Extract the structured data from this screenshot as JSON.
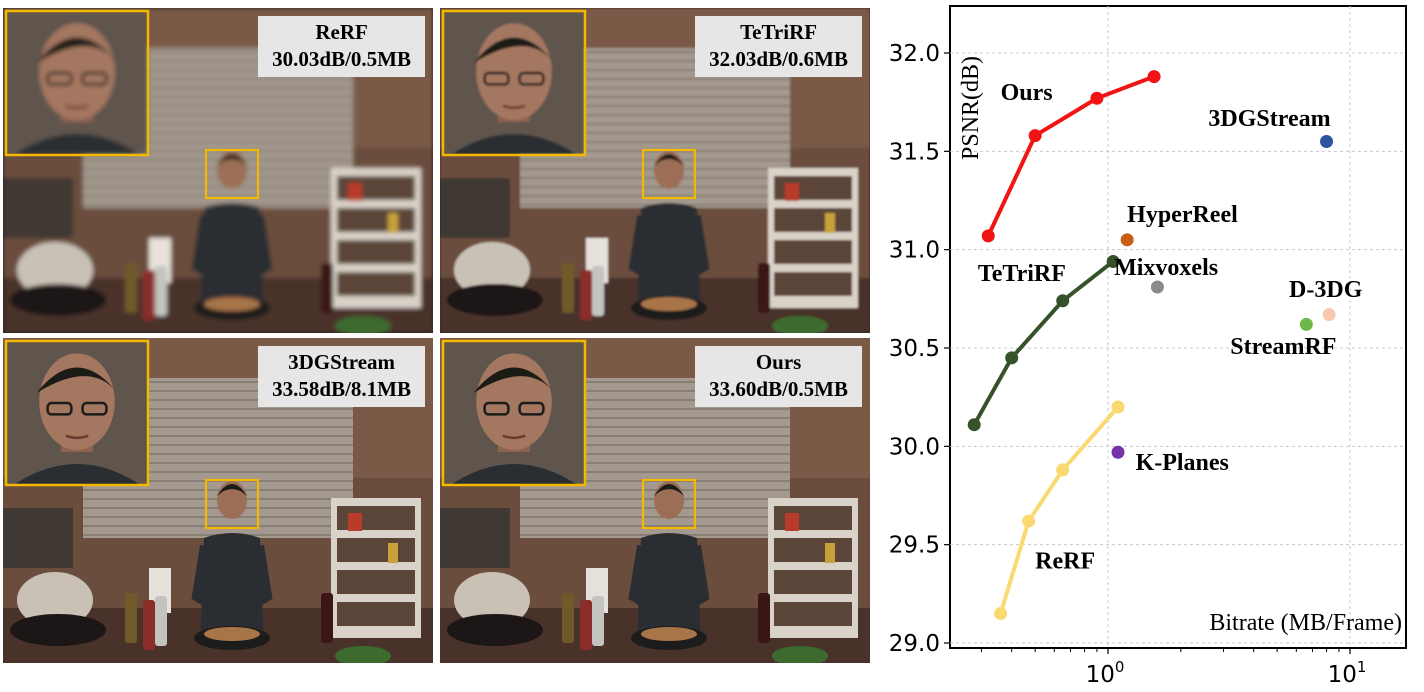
{
  "panels": [
    {
      "method": "ReRF",
      "metric": "30.03dB/0.5MB",
      "blur": 2.2
    },
    {
      "method": "TeTriRF",
      "metric": "32.03dB/0.6MB",
      "blur": 1.0
    },
    {
      "method": "3DGStream",
      "metric": "33.58dB/8.1MB",
      "blur": 0.2
    },
    {
      "method": "Ours",
      "metric": "33.60dB/0.5MB",
      "blur": 0.1
    }
  ],
  "colors": {
    "zoom_frame": "#f5b800"
  },
  "chart_data": {
    "type": "scatter",
    "xscale": "log",
    "xlim": [
      0.2,
      15
    ],
    "ylim": [
      29,
      32.1
    ],
    "xlabel": "Bitrate (MB/Frame)",
    "ylabel": "PSNR(dB)",
    "yticks": [
      29.0,
      29.5,
      30.0,
      30.5,
      31.0,
      31.5,
      32.0
    ],
    "xticks": [
      {
        "value": 1,
        "base": "10",
        "exp": "0"
      },
      {
        "value": 10,
        "base": "10",
        "exp": "1"
      }
    ],
    "grid": true,
    "series": [
      {
        "name": "Ours",
        "color": "#f01414",
        "line": true,
        "x": [
          0.32,
          0.5,
          0.9,
          1.55
        ],
        "y": [
          31.07,
          31.58,
          31.77,
          31.88
        ],
        "label_pos": [
          0.36,
          31.76
        ]
      },
      {
        "name": "TeTriRF",
        "color": "#36522a",
        "line": true,
        "x": [
          0.28,
          0.4,
          0.65,
          1.05
        ],
        "y": [
          30.11,
          30.45,
          30.74,
          30.94
        ],
        "label_pos": [
          0.29,
          30.84
        ]
      },
      {
        "name": "ReRF",
        "color": "#f9d970",
        "line": true,
        "x": [
          0.36,
          0.47,
          0.65,
          1.1
        ],
        "y": [
          29.15,
          29.62,
          29.88,
          30.2
        ],
        "label_pos": [
          0.5,
          29.38
        ]
      },
      {
        "name": "3DGStream",
        "color": "#2e549f",
        "line": false,
        "x": [
          8.0
        ],
        "y": [
          31.55
        ],
        "label_pos": [
          2.6,
          31.63
        ]
      },
      {
        "name": "HyperReel",
        "color": "#c85d14",
        "line": false,
        "x": [
          1.2
        ],
        "y": [
          31.05
        ],
        "label_pos": [
          1.2,
          31.14
        ]
      },
      {
        "name": "Mixvoxels",
        "color": "#8a8a8a",
        "line": false,
        "x": [
          1.6
        ],
        "y": [
          30.81
        ],
        "label_pos": [
          1.06,
          30.87
        ]
      },
      {
        "name": "D-3DG",
        "color": "#f6c8b0",
        "line": false,
        "x": [
          8.2
        ],
        "y": [
          30.67
        ],
        "label_pos": [
          5.6,
          30.76
        ]
      },
      {
        "name": "StreamRF",
        "color": "#6cb84a",
        "line": false,
        "x": [
          6.6
        ],
        "y": [
          30.62
        ],
        "label_pos": [
          3.2,
          30.47
        ]
      },
      {
        "name": "K-Planes",
        "color": "#7632a8",
        "line": false,
        "x": [
          1.1
        ],
        "y": [
          29.97
        ],
        "label_pos": [
          1.3,
          29.88
        ]
      }
    ]
  }
}
